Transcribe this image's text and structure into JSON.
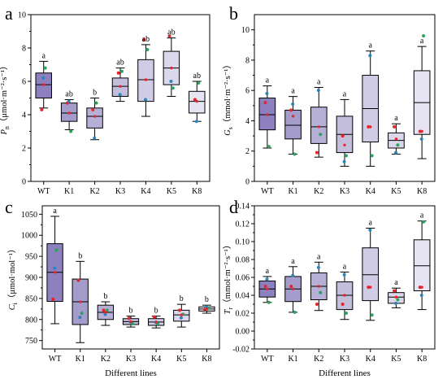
{
  "chart_data": [
    {
      "type": "box",
      "panel_label": "a",
      "ylabel": "Pn（μmol·m⁻²·s⁻¹）",
      "ylabel_main": "P",
      "ylabel_sub": "n",
      "ylabel_unit": "（μmol·m⁻²·s⁻¹）",
      "xlabel": "",
      "ylim": [
        0,
        10
      ],
      "yticks": [
        "0",
        "2",
        "4",
        "6",
        "8",
        "10"
      ],
      "categories": [
        "WT",
        "K1",
        "K2",
        "K3",
        "K4",
        "K5",
        "K8"
      ],
      "box_colors": [
        "#8c80bf",
        "#a49ccb",
        "#b7b0d6",
        "#c4bedd",
        "#d1cce5",
        "#dcd8ec",
        "#e6e3f2"
      ],
      "boxes": [
        {
          "whisker_low": 4.4,
          "q1": 5.0,
          "median": 5.8,
          "q3": 6.5,
          "whisker_high": 7.2
        },
        {
          "whisker_low": 3.1,
          "q1": 3.6,
          "median": 4.1,
          "q3": 4.7,
          "whisker_high": 4.9
        },
        {
          "whisker_low": 2.5,
          "q1": 3.2,
          "median": 3.9,
          "q3": 4.4,
          "whisker_high": 5.0
        },
        {
          "whisker_low": 4.8,
          "q1": 5.1,
          "median": 5.7,
          "q3": 6.2,
          "whisker_high": 6.8
        },
        {
          "whisker_low": 3.9,
          "q1": 4.8,
          "median": 6.1,
          "q3": 7.3,
          "whisker_high": 8.2
        },
        {
          "whisker_low": 5.1,
          "q1": 5.8,
          "median": 6.8,
          "q3": 7.8,
          "whisker_high": 8.6
        },
        {
          "whisker_low": 3.6,
          "q1": 4.1,
          "median": 4.8,
          "q3": 5.4,
          "whisker_high": 6.0
        }
      ],
      "means": [
        5.8,
        4.1,
        3.9,
        5.7,
        6.1,
        6.8,
        4.8
      ],
      "points": [
        {
          "red": 4.3,
          "green": 6.8,
          "blue": 6.2
        },
        {
          "red": 4.7,
          "green": 3.0,
          "blue": 4.8
        },
        {
          "red": 4.3,
          "green": 4.7,
          "blue": 2.6
        },
        {
          "red": 6.5,
          "green": 6.6,
          "blue": 5.2
        },
        {
          "red": 8.5,
          "green": 7.9,
          "blue": 4.9
        },
        {
          "red": 8.7,
          "green": 5.6,
          "blue": 6.0
        },
        {
          "red": 4.9,
          "green": 5.9,
          "blue": 3.6
        }
      ],
      "letters": [
        "a",
        "ab",
        "b",
        "ab",
        "ab",
        "ab",
        "ab"
      ]
    },
    {
      "type": "box",
      "panel_label": "b",
      "ylabel": "Gs（mmol·m⁻²·s⁻¹）",
      "ylabel_main": "G",
      "ylabel_sub": "s",
      "ylabel_unit": "（mmol·m⁻²·s⁻¹）",
      "xlabel": "",
      "ylim": [
        0,
        11
      ],
      "yticks": [
        "0",
        "2",
        "4",
        "6",
        "8",
        "10"
      ],
      "categories": [
        "WT",
        "K1",
        "K2",
        "K3",
        "K4",
        "K5",
        "K8"
      ],
      "box_colors": [
        "#8c80bf",
        "#a49ccb",
        "#b7b0d6",
        "#c4bedd",
        "#d1cce5",
        "#dcd8ec",
        "#e6e3f2"
      ],
      "boxes": [
        {
          "whisker_low": 2.2,
          "q1": 3.4,
          "median": 4.4,
          "q3": 5.5,
          "whisker_high": 6.3
        },
        {
          "whisker_low": 1.8,
          "q1": 2.8,
          "median": 3.7,
          "q3": 4.7,
          "whisker_high": 5.6
        },
        {
          "whisker_low": 1.6,
          "q1": 2.5,
          "median": 3.6,
          "q3": 4.9,
          "whisker_high": 6.2
        },
        {
          "whisker_low": 1.0,
          "q1": 1.9,
          "median": 3.1,
          "q3": 4.3,
          "whisker_high": 5.4
        },
        {
          "whisker_low": 1.0,
          "q1": 2.6,
          "median": 4.8,
          "q3": 7.0,
          "whisker_high": 8.6
        },
        {
          "whisker_low": 1.8,
          "q1": 2.2,
          "median": 2.7,
          "q3": 3.2,
          "whisker_high": 3.8
        },
        {
          "whisker_low": 1.5,
          "q1": 3.1,
          "median": 5.2,
          "q3": 7.3,
          "whisker_high": 8.9
        }
      ],
      "means": [
        4.4,
        4.3,
        3.6,
        2.4,
        3.6,
        2.8,
        3.3
      ],
      "points": [
        {
          "red": 5.2,
          "green": 2.3,
          "blue": 5.8
        },
        {
          "red": 4.7,
          "green": 1.8,
          "blue": 5.1
        },
        {
          "red": 1.9,
          "green": 3.1,
          "blue": 6.0
        },
        {
          "red": 3.0,
          "green": 1.7,
          "blue": 1.3
        },
        {
          "red": 3.6,
          "green": 1.7,
          "blue": 8.3
        },
        {
          "red": 3.6,
          "green": 2.4,
          "blue": 1.9
        },
        {
          "red": 3.3,
          "green": 9.6,
          "blue": 2.8
        }
      ],
      "letters": [
        "a",
        "a",
        "a",
        "a",
        "a",
        "a",
        "a"
      ]
    },
    {
      "type": "box",
      "panel_label": "c",
      "ylabel": "Ci（μmol·mol⁻¹）",
      "ylabel_main": "C",
      "ylabel_sub": "i",
      "ylabel_unit": "（μmol·mol⁻¹）",
      "xlabel": "Different lines",
      "ylim": [
        730,
        1070
      ],
      "yticks": [
        "750",
        "800",
        "850",
        "900",
        "950",
        "1000",
        "1050"
      ],
      "categories": [
        "WT",
        "K1",
        "K2",
        "K3",
        "K4",
        "K5",
        "K8"
      ],
      "box_colors": [
        "#8c80bf",
        "#a49ccb",
        "#b7b0d6",
        "#c4bedd",
        "#d1cce5",
        "#dcd8ec",
        "#e6e3f2"
      ],
      "boxes": [
        {
          "whisker_low": 790,
          "q1": 843,
          "median": 912,
          "q3": 980,
          "whisker_high": 1045
        },
        {
          "whisker_low": 745,
          "q1": 788,
          "median": 842,
          "q3": 896,
          "whisker_high": 938
        },
        {
          "whisker_low": 786,
          "q1": 800,
          "median": 817,
          "q3": 834,
          "whisker_high": 842
        },
        {
          "whisker_low": 782,
          "q1": 788,
          "median": 795,
          "q3": 802,
          "whisker_high": 808
        },
        {
          "whisker_low": 780,
          "q1": 786,
          "median": 794,
          "q3": 802,
          "whisker_high": 808
        },
        {
          "whisker_low": 782,
          "q1": 796,
          "median": 811,
          "q3": 822,
          "whisker_high": 836
        },
        {
          "whisker_low": 815,
          "q1": 820,
          "median": 825,
          "q3": 830,
          "whisker_high": 834
        }
      ],
      "means": [
        912,
        842,
        817,
        795,
        794,
        811,
        825
      ],
      "points": [
        {
          "red": 848,
          "green": 965,
          "blue": 922
        },
        {
          "red": 893,
          "green": 815,
          "blue": 805
        },
        {
          "red": 822,
          "green": 822,
          "blue": 812
        },
        {
          "red": 803,
          "green": 790,
          "blue": 794
        },
        {
          "red": 806,
          "green": 790,
          "blue": 793
        },
        {
          "red": 822,
          "green": 812,
          "blue": 804
        },
        {
          "red": 824,
          "green": 827,
          "blue": 830
        }
      ],
      "letters": [
        "a",
        "b",
        "b",
        "b",
        "b",
        "b",
        "b"
      ]
    },
    {
      "type": "box",
      "panel_label": "d",
      "ylabel": "Tr（mmol·m⁻²·s⁻¹）",
      "ylabel_main": "T",
      "ylabel_sub": "r",
      "ylabel_unit": "（mmol·m⁻²·s⁻¹）",
      "xlabel": "Different lines",
      "ylim": [
        -0.02,
        0.14
      ],
      "yticks": [
        "-0.02",
        "0.00",
        "0.02",
        "0.04",
        "0.06",
        "0.08",
        "0.10",
        "0.12",
        "0.14"
      ],
      "categories": [
        "WT",
        "K1",
        "K2",
        "K3",
        "K4",
        "K5",
        "K8"
      ],
      "box_colors": [
        "#8c80bf",
        "#a49ccb",
        "#b7b0d6",
        "#c4bedd",
        "#d1cce5",
        "#dcd8ec",
        "#e6e3f2"
      ],
      "boxes": [
        {
          "whisker_low": 0.032,
          "q1": 0.038,
          "median": 0.047,
          "q3": 0.056,
          "whisker_high": 0.061
        },
        {
          "whisker_low": 0.021,
          "q1": 0.033,
          "median": 0.047,
          "q3": 0.061,
          "whisker_high": 0.072
        },
        {
          "whisker_low": 0.023,
          "q1": 0.035,
          "median": 0.05,
          "q3": 0.065,
          "whisker_high": 0.077
        },
        {
          "whisker_low": 0.013,
          "q1": 0.024,
          "median": 0.04,
          "q3": 0.055,
          "whisker_high": 0.066
        },
        {
          "whisker_low": 0.012,
          "q1": 0.034,
          "median": 0.063,
          "q3": 0.093,
          "whisker_high": 0.115
        },
        {
          "whisker_low": 0.026,
          "q1": 0.031,
          "median": 0.038,
          "q3": 0.043,
          "whisker_high": 0.048
        },
        {
          "whisker_low": 0.024,
          "q1": 0.045,
          "median": 0.073,
          "q3": 0.102,
          "whisker_high": 0.123
        }
      ],
      "means": [
        0.047,
        0.047,
        0.05,
        0.04,
        0.049,
        0.038,
        0.049
      ],
      "points": [
        {
          "red": 0.05,
          "green": 0.032,
          "blue": 0.058
        },
        {
          "red": 0.05,
          "green": 0.021,
          "blue": 0.062
        },
        {
          "red": 0.03,
          "green": 0.043,
          "blue": 0.071
        },
        {
          "red": 0.03,
          "green": 0.02,
          "blue": 0.063
        },
        {
          "red": 0.049,
          "green": 0.018,
          "blue": 0.113
        },
        {
          "red": 0.045,
          "green": 0.035,
          "blue": 0.031
        },
        {
          "red": 0.049,
          "green": 0.122,
          "blue": 0.04
        }
      ],
      "letters": [
        "a",
        "a",
        "a",
        "a",
        "a",
        "a",
        "a"
      ]
    }
  ],
  "point_colors": {
    "red": "#e8242b",
    "green": "#2ca25f",
    "blue": "#2b83ba"
  }
}
